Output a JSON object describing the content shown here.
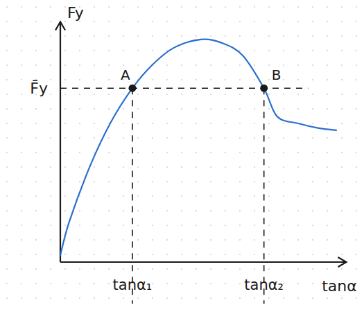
{
  "chart_data": {
    "type": "line",
    "x_label": "tanα",
    "y_label": "Fy",
    "x": [
      0,
      0.39,
      1.3,
      2.2,
      3.15,
      4.0,
      4.95,
      6.15,
      7.06,
      7.97,
      8.9,
      9.48,
      10.4,
      11.3,
      12.06
    ],
    "series": [
      {
        "color": "#2a6fcf",
        "line_style": "solid",
        "values": [
          0.3,
          1.76,
          4.2,
          6.1,
          7.6,
          8.6,
          9.36,
          9.73,
          9.58,
          9.03,
          7.6,
          6.36,
          6.06,
          5.85,
          5.76
        ]
      }
    ],
    "xlim": [
      0,
      12.5
    ],
    "ylim": [
      0,
      10.5
    ],
    "xticks": [
      {
        "value": 3.15,
        "label": "tanα₁"
      },
      {
        "value": 8.9,
        "label": "tanα₂"
      }
    ],
    "yticks": [
      {
        "value": 7.6,
        "label": "F̄y"
      }
    ],
    "annotations": [
      {
        "label": "A",
        "x": 3.15,
        "y": 7.6
      },
      {
        "label": "B",
        "x": 8.9,
        "y": 7.6
      }
    ],
    "grid": false
  }
}
